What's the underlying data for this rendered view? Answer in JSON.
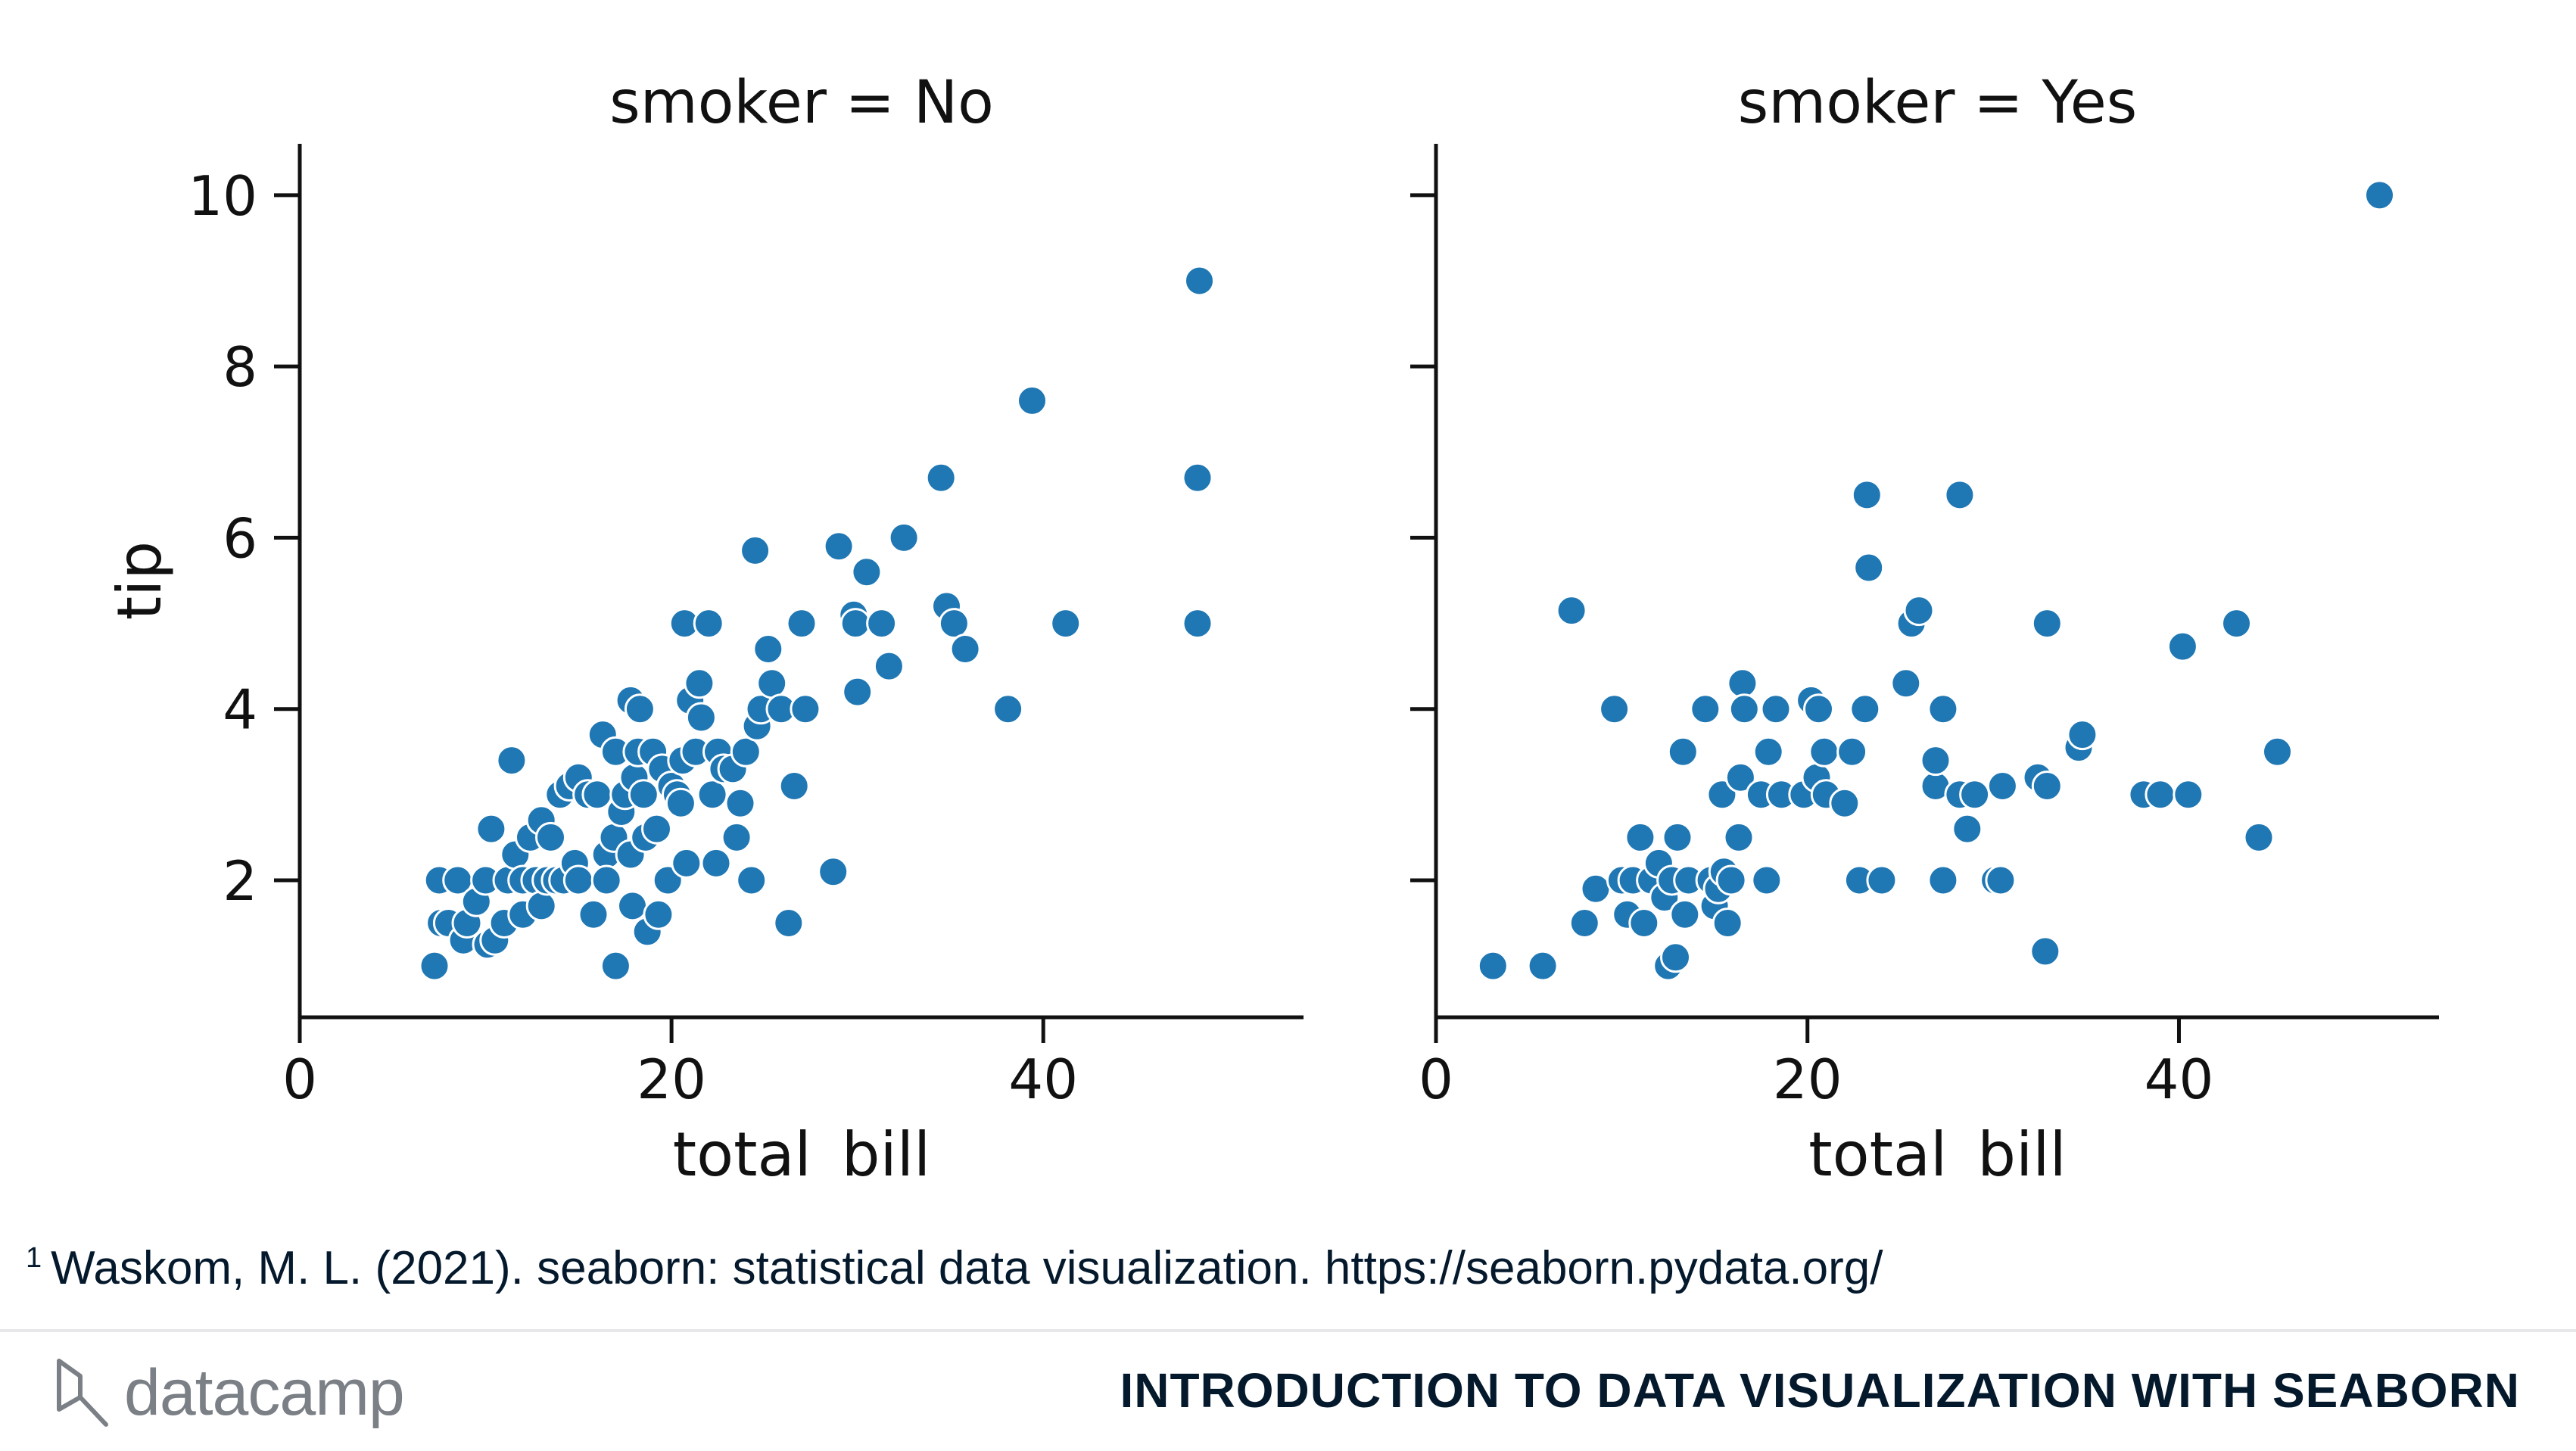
{
  "chart_data": {
    "type": "scatter",
    "xlabel": "total_bill",
    "ylabel": "tip",
    "xlim": [
      0,
      54
    ],
    "ylim": [
      0.4,
      10.6
    ],
    "xticks": [
      0,
      20,
      40
    ],
    "yticks": [
      2,
      4,
      6,
      8,
      10
    ],
    "marker_color": "#1f77b4",
    "panels": [
      {
        "title": "smoker = No",
        "points": [
          [
            7.25,
            1.0
          ],
          [
            7.5,
            2.0
          ],
          [
            7.6,
            1.5
          ],
          [
            8.0,
            1.5
          ],
          [
            8.5,
            2.0
          ],
          [
            8.8,
            1.3
          ],
          [
            9.0,
            1.5
          ],
          [
            9.5,
            1.75
          ],
          [
            10.0,
            2.0
          ],
          [
            10.1,
            1.25
          ],
          [
            10.3,
            2.6
          ],
          [
            10.5,
            1.3
          ],
          [
            11.0,
            1.5
          ],
          [
            11.2,
            2.0
          ],
          [
            11.4,
            3.4
          ],
          [
            11.6,
            2.3
          ],
          [
            12.0,
            2.0
          ],
          [
            12.0,
            1.6
          ],
          [
            12.4,
            2.5
          ],
          [
            12.7,
            2.0
          ],
          [
            13.0,
            1.7
          ],
          [
            13.0,
            2.7
          ],
          [
            13.3,
            2.0
          ],
          [
            13.5,
            2.5
          ],
          [
            13.8,
            2.0
          ],
          [
            14.0,
            3.0
          ],
          [
            14.2,
            2.0
          ],
          [
            14.5,
            3.1
          ],
          [
            14.8,
            2.2
          ],
          [
            15.0,
            3.2
          ],
          [
            15.0,
            2.0
          ],
          [
            15.5,
            3.0
          ],
          [
            15.8,
            1.6
          ],
          [
            16.0,
            3.0
          ],
          [
            16.3,
            3.7
          ],
          [
            16.5,
            2.3
          ],
          [
            16.5,
            2.0
          ],
          [
            16.9,
            2.5
          ],
          [
            17.0,
            3.5
          ],
          [
            17.0,
            1.0
          ],
          [
            17.3,
            2.8
          ],
          [
            17.5,
            3.0
          ],
          [
            17.8,
            4.1
          ],
          [
            17.8,
            2.3
          ],
          [
            17.9,
            1.7
          ],
          [
            18.0,
            3.2
          ],
          [
            18.2,
            3.5
          ],
          [
            18.3,
            4.0
          ],
          [
            18.5,
            3.0
          ],
          [
            18.6,
            2.5
          ],
          [
            18.7,
            1.4
          ],
          [
            19.0,
            3.5
          ],
          [
            19.2,
            2.6
          ],
          [
            19.3,
            1.6
          ],
          [
            19.5,
            3.3
          ],
          [
            19.8,
            2.0
          ],
          [
            20.0,
            3.1
          ],
          [
            20.3,
            3.0
          ],
          [
            20.5,
            2.9
          ],
          [
            20.6,
            3.4
          ],
          [
            20.7,
            5.0
          ],
          [
            20.8,
            2.2
          ],
          [
            21.0,
            4.1
          ],
          [
            21.3,
            3.5
          ],
          [
            21.5,
            4.3
          ],
          [
            21.6,
            3.9
          ],
          [
            22.0,
            5.0
          ],
          [
            22.2,
            3.0
          ],
          [
            22.4,
            2.2
          ],
          [
            22.5,
            3.5
          ],
          [
            22.8,
            3.3
          ],
          [
            23.3,
            3.3
          ],
          [
            23.5,
            2.5
          ],
          [
            23.7,
            2.9
          ],
          [
            24.0,
            3.5
          ],
          [
            24.0,
            3.5
          ],
          [
            24.3,
            2.0
          ],
          [
            24.5,
            5.85
          ],
          [
            24.6,
            3.8
          ],
          [
            24.8,
            4.0
          ],
          [
            25.2,
            4.7
          ],
          [
            25.4,
            4.3
          ],
          [
            25.9,
            4.0
          ],
          [
            26.3,
            1.5
          ],
          [
            26.6,
            3.1
          ],
          [
            27.0,
            5.0
          ],
          [
            27.2,
            4.0
          ],
          [
            28.7,
            2.1
          ],
          [
            29.0,
            5.9
          ],
          [
            29.8,
            5.1
          ],
          [
            29.9,
            5.0
          ],
          [
            30.0,
            4.2
          ],
          [
            30.5,
            5.6
          ],
          [
            31.3,
            5.0
          ],
          [
            31.7,
            4.5
          ],
          [
            32.5,
            6.0
          ],
          [
            34.5,
            6.7
          ],
          [
            34.8,
            5.2
          ],
          [
            35.2,
            5.0
          ],
          [
            35.8,
            4.7
          ],
          [
            38.1,
            4.0
          ],
          [
            39.4,
            7.6
          ],
          [
            41.2,
            5.0
          ],
          [
            48.3,
            5.0
          ],
          [
            48.3,
            6.7
          ],
          [
            48.4,
            9.0
          ]
        ]
      },
      {
        "title": "smoker = Yes",
        "points": [
          [
            3.07,
            1.0
          ],
          [
            5.75,
            1.0
          ],
          [
            7.3,
            5.15
          ],
          [
            8.0,
            1.5
          ],
          [
            8.6,
            1.9
          ],
          [
            9.6,
            4.0
          ],
          [
            10.0,
            2.0
          ],
          [
            10.3,
            1.6
          ],
          [
            10.6,
            2.0
          ],
          [
            11.0,
            2.5
          ],
          [
            11.2,
            1.5
          ],
          [
            11.6,
            2.0
          ],
          [
            12.0,
            2.2
          ],
          [
            12.3,
            1.8
          ],
          [
            12.5,
            1.0
          ],
          [
            12.7,
            2.0
          ],
          [
            12.9,
            1.1
          ],
          [
            13.0,
            2.5
          ],
          [
            13.3,
            3.5
          ],
          [
            13.4,
            1.6
          ],
          [
            13.6,
            2.0
          ],
          [
            14.5,
            4.0
          ],
          [
            14.8,
            2.0
          ],
          [
            15.0,
            1.7
          ],
          [
            15.2,
            1.9
          ],
          [
            15.4,
            3.0
          ],
          [
            15.5,
            2.1
          ],
          [
            15.7,
            1.5
          ],
          [
            15.9,
            2.0
          ],
          [
            16.3,
            2.5
          ],
          [
            16.4,
            3.2
          ],
          [
            16.5,
            4.3
          ],
          [
            16.6,
            4.0
          ],
          [
            17.5,
            3.0
          ],
          [
            17.8,
            2.0
          ],
          [
            17.9,
            3.5
          ],
          [
            18.3,
            4.0
          ],
          [
            18.6,
            3.0
          ],
          [
            19.8,
            3.0
          ],
          [
            20.2,
            4.1
          ],
          [
            20.5,
            3.2
          ],
          [
            20.6,
            4.0
          ],
          [
            20.9,
            3.5
          ],
          [
            21.0,
            3.0
          ],
          [
            22.0,
            2.9
          ],
          [
            22.4,
            3.5
          ],
          [
            22.8,
            2.0
          ],
          [
            23.1,
            4.0
          ],
          [
            23.2,
            6.5
          ],
          [
            23.3,
            5.65
          ],
          [
            24.0,
            2.0
          ],
          [
            25.3,
            4.3
          ],
          [
            25.6,
            5.0
          ],
          [
            26.0,
            5.15
          ],
          [
            26.9,
            3.1
          ],
          [
            26.9,
            3.4
          ],
          [
            27.3,
            2.0
          ],
          [
            27.3,
            4.0
          ],
          [
            28.2,
            6.5
          ],
          [
            28.2,
            3.0
          ],
          [
            28.6,
            2.6
          ],
          [
            29.0,
            3.0
          ],
          [
            30.1,
            2.0
          ],
          [
            30.4,
            2.0
          ],
          [
            30.5,
            3.1
          ],
          [
            32.4,
            3.2
          ],
          [
            32.8,
            1.17
          ],
          [
            32.9,
            5.0
          ],
          [
            32.9,
            3.1
          ],
          [
            34.6,
            3.55
          ],
          [
            34.8,
            3.7
          ],
          [
            38.1,
            3.0
          ],
          [
            39.0,
            3.0
          ],
          [
            40.2,
            4.73
          ],
          [
            40.5,
            3.0
          ],
          [
            43.1,
            5.0
          ],
          [
            44.3,
            2.5
          ],
          [
            45.3,
            3.5
          ],
          [
            50.8,
            10.0
          ]
        ]
      }
    ]
  },
  "footnote": {
    "marker": "1",
    "text": "Waskom, M. L. (2021). seaborn: statistical data visualization. https://seaborn.pydata.org/"
  },
  "footer": {
    "logo_text": "datacamp",
    "logo_icon": "datacamp-logo-icon",
    "course_title": "INTRODUCTION TO DATA VISUALIZATION WITH SEABORN"
  }
}
